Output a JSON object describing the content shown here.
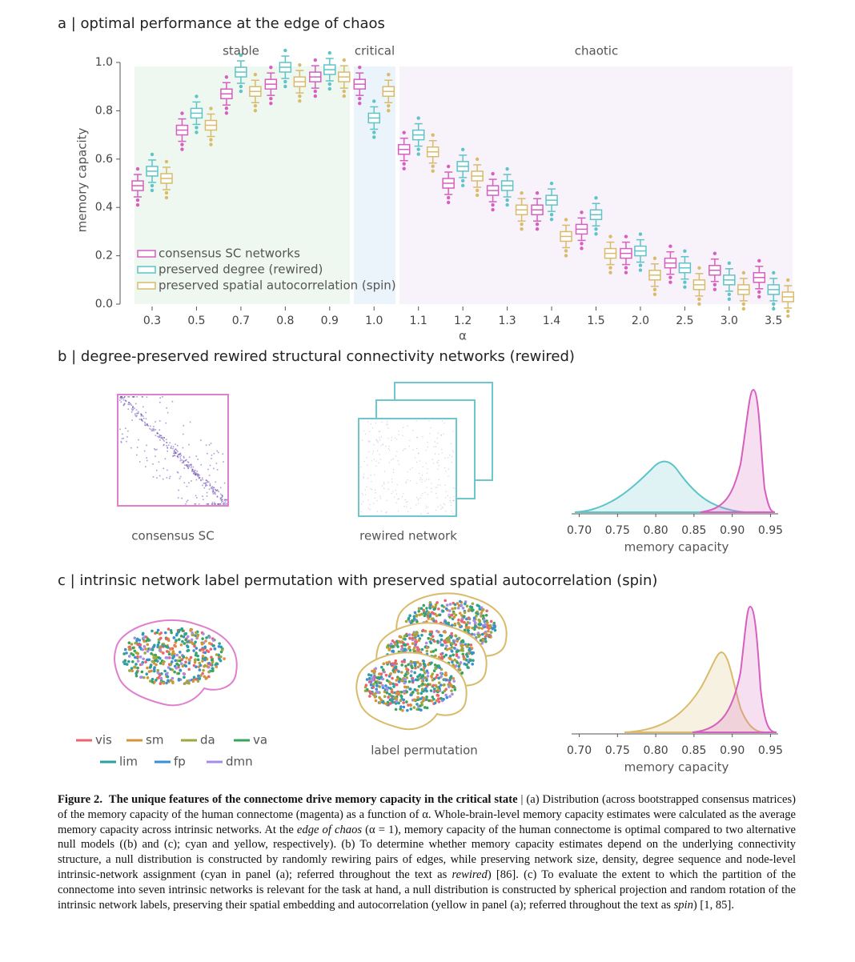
{
  "panel_a": {
    "title": "a | optimal performance at the edge of chaos"
  },
  "panel_b": {
    "title": "b | degree-preserved rewired structural connectivity networks (rewired)",
    "matrix_labels": [
      "consensus SC",
      "rewired network"
    ]
  },
  "panel_c": {
    "title": "c | intrinsic network label permutation with preserved spatial autocorrelation (spin)",
    "brain_label": "label permutation",
    "networks": [
      {
        "name": "vis",
        "color": "#f0616e"
      },
      {
        "name": "sm",
        "color": "#d9923a"
      },
      {
        "name": "da",
        "color": "#9fa83d"
      },
      {
        "name": "va",
        "color": "#3aa55a"
      },
      {
        "name": "lim",
        "color": "#2aa0a0"
      },
      {
        "name": "fp",
        "color": "#3b8fd6"
      },
      {
        "name": "dmn",
        "color": "#a78ce8"
      }
    ]
  },
  "chart_data": [
    {
      "type": "box",
      "xlabel": "α",
      "ylabel": "memory capacity",
      "regions": [
        {
          "label": "stable"
        },
        {
          "label": "critical"
        },
        {
          "label": "chaotic"
        }
      ],
      "categories": [
        "0.3",
        "0.5",
        "0.7",
        "0.8",
        "0.9",
        "1.0",
        "1.1",
        "1.2",
        "1.3",
        "1.4",
        "1.5",
        "2.0",
        "2.5",
        "3.0",
        "3.5"
      ],
      "ylim": [
        0,
        1
      ],
      "yticks": [
        {
          "value": 0,
          "label": "0.0"
        },
        0.2,
        0.4,
        0.6,
        0.8,
        {
          "value": 1,
          "label": "1.0"
        }
      ],
      "legend": "lower left",
      "series": [
        {
          "name": "consensus SC networks",
          "color": "#d65fbf",
          "values": [
            0.49,
            0.72,
            0.87,
            0.91,
            0.94,
            0.91,
            0.64,
            0.5,
            0.47,
            0.39,
            0.31,
            0.21,
            0.17,
            0.14,
            0.11
          ]
        },
        {
          "name": "preserved degree (rewired)",
          "color": "#5ec4c8",
          "values": [
            0.55,
            0.79,
            0.96,
            0.98,
            0.97,
            0.77,
            0.7,
            0.57,
            0.49,
            0.43,
            0.37,
            0.22,
            0.15,
            0.1,
            0.06
          ]
        },
        {
          "name": "preserved spatial autocorrelation (spin)",
          "color": "#d9bb6b",
          "values": [
            0.52,
            0.74,
            0.88,
            0.92,
            0.94,
            0.88,
            0.63,
            0.53,
            0.39,
            0.28,
            0.21,
            0.12,
            0.08,
            0.06,
            0.03
          ]
        }
      ]
    },
    {
      "type": "density",
      "xlabel": "memory capacity",
      "xlim": [
        0.69,
        0.96
      ],
      "xticks": [
        {
          "value": 0.7,
          "label": "0.70"
        },
        0.75,
        {
          "value": 0.8,
          "label": "0.80"
        },
        0.85,
        {
          "value": 0.9,
          "label": "0.90"
        },
        0.95
      ]
    },
    {
      "type": "density",
      "xlabel": "memory capacity",
      "xlim": [
        0.69,
        0.96
      ],
      "xticks": [
        {
          "value": 0.7,
          "label": "0.70"
        },
        0.75,
        {
          "value": 0.8,
          "label": "0.80"
        },
        0.85,
        {
          "value": 0.9,
          "label": "0.90"
        },
        0.95
      ]
    }
  ],
  "caption": {
    "label": "Figure 2.",
    "title": "The unique features of the connectome drive memory capacity in the critical state",
    "segments": [
      {
        "text": " | (a) Distribution (across bootstrapped consensus matrices) of the memory capacity of the human connectome (magenta) as a function of α. Whole-brain-level memory capacity estimates were calculated as the average memory capacity across intrinsic networks. At the ",
        "italic": false
      },
      {
        "text": "edge of chaos",
        "italic": true
      },
      {
        "text": " (α = 1), memory capacity of the human connectome is optimal compared to two alternative null models ((b) and (c); cyan and yellow, respectively). (b) To determine whether memory capacity estimates depend on the underlying connectivity structure, a null distribution is constructed by randomly rewiring pairs of edges, while preserving network size, density, degree sequence and node-level intrinsic-network assignment (cyan in panel (a); referred throughout the text as ",
        "italic": false
      },
      {
        "text": "rewired",
        "italic": true
      },
      {
        "text": ") [86]. (c) To evaluate the extent to which the partition of the connectome into seven intrinsic networks is relevant for the task at hand, a null distribution is constructed by spherical projection and random rotation of the intrinsic network labels, preserving their spatial embedding and autocorrelation (yellow in panel (a); referred throughout the text as ",
        "italic": false
      },
      {
        "text": "spin",
        "italic": true
      },
      {
        "text": ") [1, 85].",
        "italic": false
      }
    ]
  }
}
